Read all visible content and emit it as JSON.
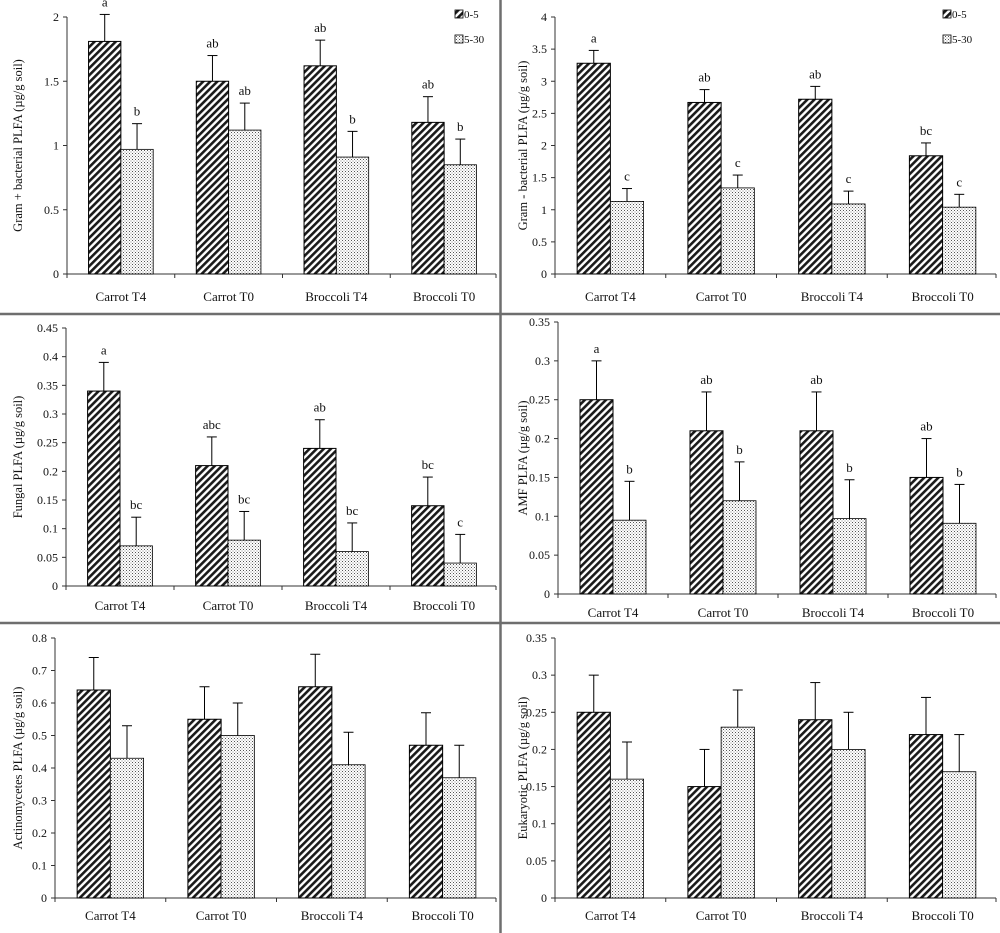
{
  "legend": {
    "series_labels": [
      "0-5",
      "5-30"
    ]
  },
  "chart_data": [
    {
      "type": "bar",
      "categories": [
        "Carrot T4",
        "Carrot T0",
        "Broccoli T4",
        "Broccoli T0"
      ],
      "ylabel": "Gram + bacterial PLFA (µg/g soil)",
      "ylim": [
        0,
        2
      ],
      "yticks": [
        "0",
        "0.5",
        "1",
        "1.5",
        "2"
      ],
      "yticks_values": [
        0,
        0.5,
        1,
        1.5,
        2
      ],
      "show_legend": true,
      "series": [
        {
          "name": "0-5",
          "values": [
            1.81,
            1.5,
            1.62,
            1.18
          ],
          "errors": [
            0.21,
            0.2,
            0.2,
            0.2
          ],
          "letters": [
            "a",
            "ab",
            "ab",
            "ab"
          ]
        },
        {
          "name": "5-30",
          "values": [
            0.97,
            1.12,
            0.91,
            0.85
          ],
          "errors": [
            0.2,
            0.21,
            0.2,
            0.2
          ],
          "letters": [
            "b",
            "ab",
            "b",
            "b"
          ]
        }
      ]
    },
    {
      "type": "bar",
      "categories": [
        "Carrot T4",
        "Carrot T0",
        "Broccoli T4",
        "Broccoli T0"
      ],
      "ylabel": "Gram - bacterial PLFA (µg/g soil)",
      "ylim": [
        0,
        4
      ],
      "yticks": [
        "0",
        "0.5",
        "1",
        "1.5",
        "2",
        "2.5",
        "3",
        "3.5",
        "4"
      ],
      "yticks_values": [
        0,
        0.5,
        1,
        1.5,
        2,
        2.5,
        3,
        3.5,
        4
      ],
      "show_legend": true,
      "series": [
        {
          "name": "0-5",
          "values": [
            3.28,
            2.67,
            2.72,
            1.84
          ],
          "errors": [
            0.2,
            0.2,
            0.2,
            0.2
          ],
          "letters": [
            "a",
            "ab",
            "ab",
            "bc"
          ]
        },
        {
          "name": "5-30",
          "values": [
            1.13,
            1.34,
            1.09,
            1.04
          ],
          "errors": [
            0.2,
            0.2,
            0.2,
            0.2
          ],
          "letters": [
            "c",
            "c",
            "c",
            "c"
          ]
        }
      ]
    },
    {
      "type": "bar",
      "categories": [
        "Carrot T4",
        "Carrot T0",
        "Broccoli T4",
        "Broccoli T0"
      ],
      "ylabel": "Fungal PLFA (µg/g soil)",
      "ylim": [
        0,
        0.45
      ],
      "yticks": [
        "0",
        "0.05",
        "0.1",
        "0.15",
        "0.2",
        "0.25",
        "0.3",
        "0.35",
        "0.4",
        "0.45"
      ],
      "yticks_values": [
        0,
        0.05,
        0.1,
        0.15,
        0.2,
        0.25,
        0.3,
        0.35,
        0.4,
        0.45
      ],
      "show_legend": false,
      "series": [
        {
          "name": "0-5",
          "values": [
            0.34,
            0.21,
            0.24,
            0.14
          ],
          "errors": [
            0.05,
            0.05,
            0.05,
            0.05
          ],
          "letters": [
            "a",
            "abc",
            "ab",
            "bc"
          ]
        },
        {
          "name": "5-30",
          "values": [
            0.07,
            0.08,
            0.06,
            0.04
          ],
          "errors": [
            0.05,
            0.05,
            0.05,
            0.05
          ],
          "letters": [
            "bc",
            "bc",
            "bc",
            "c"
          ]
        }
      ]
    },
    {
      "type": "bar",
      "categories": [
        "Carrot T4",
        "Carrot T0",
        "Broccoli T4",
        "Broccoli T0"
      ],
      "ylabel": "AMF PLFA (µg/g soil)",
      "ylim": [
        0,
        0.35
      ],
      "yticks": [
        "0",
        "0.05",
        "0.1",
        "0.15",
        "0.2",
        "0.25",
        "0.3",
        "0.35"
      ],
      "yticks_values": [
        0,
        0.05,
        0.1,
        0.15,
        0.2,
        0.25,
        0.3,
        0.35
      ],
      "show_legend": false,
      "series": [
        {
          "name": "0-5",
          "values": [
            0.25,
            0.21,
            0.21,
            0.15
          ],
          "errors": [
            0.05,
            0.05,
            0.05,
            0.05
          ],
          "letters": [
            "a",
            "ab",
            "ab",
            "ab"
          ]
        },
        {
          "name": "5-30",
          "values": [
            0.095,
            0.12,
            0.097,
            0.091
          ],
          "errors": [
            0.05,
            0.05,
            0.05,
            0.05
          ],
          "letters": [
            "b",
            "b",
            "b",
            "b"
          ]
        }
      ]
    },
    {
      "type": "bar",
      "categories": [
        "Carrot T4",
        "Carrot T0",
        "Broccoli T4",
        "Broccoli T0"
      ],
      "ylabel": "Actinomycetes PLFA (µg/g soil)",
      "ylim": [
        0,
        0.8
      ],
      "yticks": [
        "0",
        "0.1",
        "0.2",
        "0.3",
        "0.4",
        "0.5",
        "0.6",
        "0.7",
        "0.8"
      ],
      "yticks_values": [
        0,
        0.1,
        0.2,
        0.3,
        0.4,
        0.5,
        0.6,
        0.7,
        0.8
      ],
      "show_legend": false,
      "series": [
        {
          "name": "0-5",
          "values": [
            0.64,
            0.55,
            0.65,
            0.47
          ],
          "errors": [
            0.1,
            0.1,
            0.1,
            0.1
          ],
          "letters": [
            "",
            "",
            "",
            ""
          ]
        },
        {
          "name": "5-30",
          "values": [
            0.43,
            0.5,
            0.41,
            0.37
          ],
          "errors": [
            0.1,
            0.1,
            0.1,
            0.1
          ],
          "letters": [
            "",
            "",
            "",
            ""
          ]
        }
      ]
    },
    {
      "type": "bar",
      "categories": [
        "Carrot T4",
        "Carrot T0",
        "Broccoli T4",
        "Broccoli T0"
      ],
      "ylabel": "Eukaryotic PLFA (µg/g soil)",
      "ylim": [
        0,
        0.35
      ],
      "yticks": [
        "0",
        "0.05",
        "0.1",
        "0.15",
        "0.2",
        "0.25",
        "0.3",
        "0.35"
      ],
      "yticks_values": [
        0,
        0.05,
        0.1,
        0.15,
        0.2,
        0.25,
        0.3,
        0.35
      ],
      "show_legend": false,
      "series": [
        {
          "name": "0-5",
          "values": [
            0.25,
            0.15,
            0.24,
            0.22
          ],
          "errors": [
            0.05,
            0.05,
            0.05,
            0.05
          ],
          "letters": [
            "",
            "",
            "",
            ""
          ]
        },
        {
          "name": "5-30",
          "values": [
            0.16,
            0.23,
            0.2,
            0.17
          ],
          "errors": [
            0.05,
            0.05,
            0.05,
            0.05
          ],
          "letters": [
            "",
            "",
            "",
            ""
          ]
        }
      ]
    }
  ]
}
